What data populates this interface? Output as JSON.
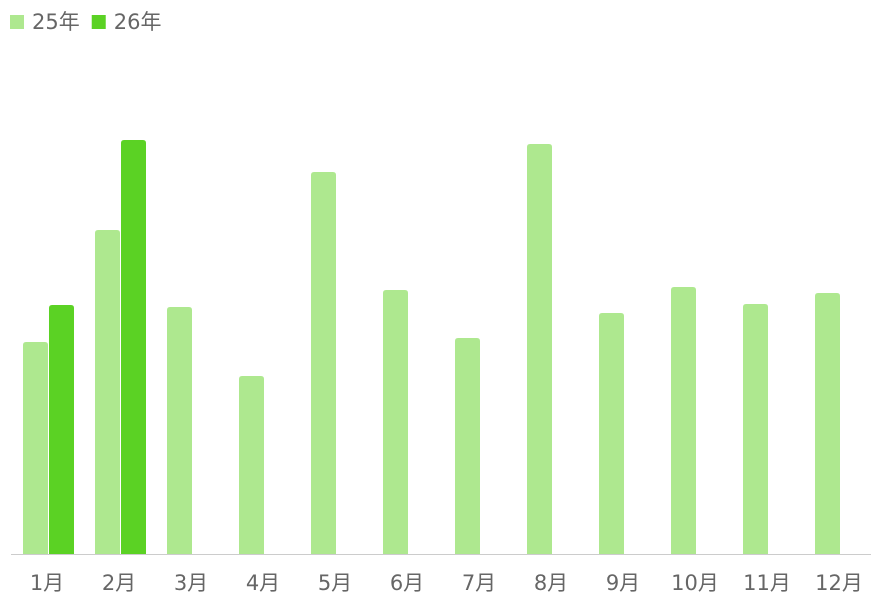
{
  "chart_data": {
    "type": "bar",
    "categories": [
      "1月",
      "2月",
      "3月",
      "4月",
      "5月",
      "6月",
      "7月",
      "8月",
      "9月",
      "10月",
      "11月",
      "12月"
    ],
    "series": [
      {
        "name": "25年",
        "color": "#aee88f",
        "values": [
          212,
          324,
          247,
          178,
          382,
          264,
          216,
          410,
          241,
          267,
          250,
          261
        ]
      },
      {
        "name": "26年",
        "color": "#5bd224",
        "values": [
          249,
          414,
          null,
          null,
          null,
          null,
          null,
          null,
          null,
          null,
          null,
          null
        ]
      }
    ],
    "ylim": [
      0,
      450
    ],
    "legend": "top-left"
  }
}
